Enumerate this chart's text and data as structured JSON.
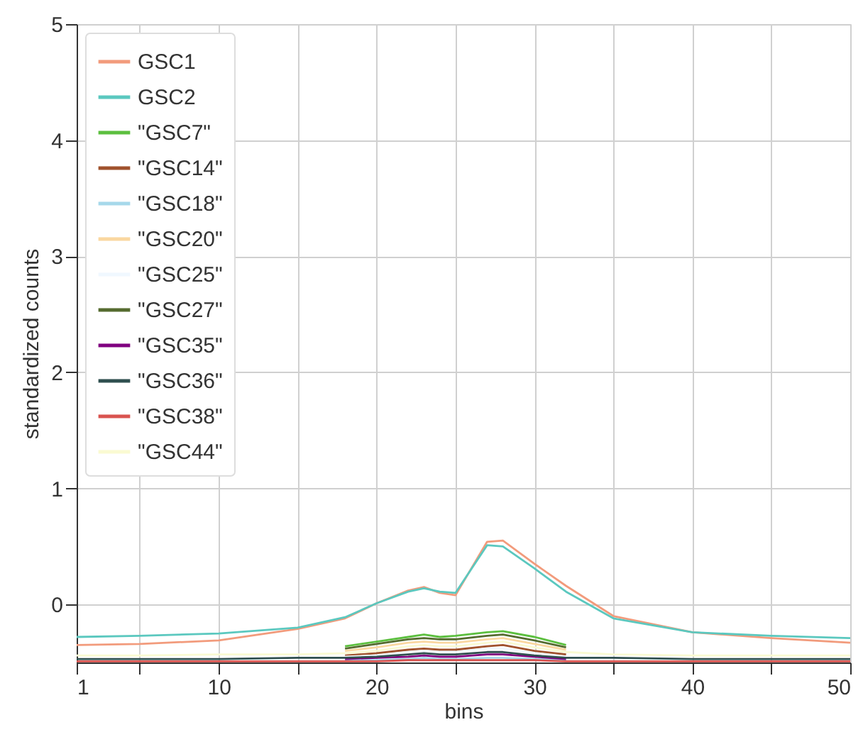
{
  "chart_data": {
    "type": "line",
    "xlabel": "bins",
    "ylabel": "standardized counts",
    "x": [
      1,
      5,
      10,
      15,
      18,
      20,
      22,
      23,
      24,
      25,
      27,
      28,
      30,
      32,
      35,
      40,
      45,
      50
    ],
    "xlim": [
      1,
      50
    ],
    "xticks": [
      1,
      {
        "value": 5,
        "label": null
      },
      10,
      {
        "value": 15,
        "label": null
      },
      20,
      {
        "value": 25,
        "label": null
      },
      30,
      {
        "value": 35,
        "label": null
      },
      40,
      {
        "value": 45,
        "label": null
      },
      50
    ],
    "ylim": [
      -0.5,
      5
    ],
    "yticks": [
      0,
      1,
      2,
      3,
      4,
      5
    ],
    "grid": true,
    "legend": "top left",
    "line_style": "solid",
    "marker": "none",
    "series": [
      {
        "name": "GSC1",
        "color": "#f29b7c",
        "values": [
          -0.35,
          -0.34,
          -0.31,
          -0.21,
          -0.12,
          0.01,
          0.12,
          0.15,
          0.1,
          0.08,
          0.54,
          0.55,
          0.35,
          0.16,
          -0.1,
          -0.24,
          -0.29,
          -0.33
        ]
      },
      {
        "name": "GSC2",
        "color": "#5bc8bf",
        "values": [
          -0.28,
          -0.27,
          -0.25,
          -0.2,
          -0.11,
          0.01,
          0.11,
          0.14,
          0.11,
          0.1,
          0.51,
          0.5,
          0.31,
          0.11,
          -0.12,
          -0.24,
          -0.27,
          -0.29
        ]
      },
      {
        "name": "\"GSC7\"",
        "color": "#5cbf3f",
        "values": [
          null,
          null,
          null,
          null,
          -0.36,
          -0.32,
          -0.28,
          -0.26,
          -0.28,
          -0.27,
          -0.24,
          -0.23,
          -0.28,
          -0.35,
          null,
          null,
          null,
          null
        ]
      },
      {
        "name": "\"GSC14\"",
        "color": "#a0522d",
        "values": [
          null,
          null,
          null,
          null,
          -0.44,
          -0.42,
          -0.39,
          -0.38,
          -0.39,
          -0.39,
          -0.36,
          -0.35,
          -0.4,
          -0.43,
          null,
          null,
          null,
          null
        ]
      },
      {
        "name": "\"GSC18\"",
        "color": "#a6d8ea",
        "values": [
          null,
          null,
          null,
          null,
          -0.48,
          -0.48,
          -0.47,
          -0.46,
          -0.47,
          -0.47,
          -0.46,
          -0.46,
          -0.47,
          -0.48,
          null,
          null,
          null,
          null
        ]
      },
      {
        "name": "\"GSC20\"",
        "color": "#fad7a0",
        "values": [
          null,
          null,
          null,
          null,
          -0.4,
          -0.37,
          -0.33,
          -0.32,
          -0.33,
          -0.33,
          -0.3,
          -0.29,
          -0.34,
          -0.39,
          null,
          null,
          null,
          null
        ]
      },
      {
        "name": "\"GSC25\"",
        "color": "#f0f8ff",
        "values": [
          null,
          null,
          null,
          null,
          -0.45,
          -0.44,
          -0.41,
          -0.4,
          -0.41,
          -0.41,
          -0.38,
          -0.38,
          -0.42,
          -0.45,
          null,
          null,
          null,
          null
        ]
      },
      {
        "name": "\"GSC27\"",
        "color": "#556b2f",
        "values": [
          null,
          null,
          null,
          null,
          -0.38,
          -0.34,
          -0.3,
          -0.29,
          -0.3,
          -0.3,
          -0.27,
          -0.26,
          -0.31,
          -0.37,
          null,
          null,
          null,
          null
        ]
      },
      {
        "name": "\"GSC35\"",
        "color": "#800080",
        "values": [
          null,
          null,
          null,
          null,
          -0.47,
          -0.46,
          -0.45,
          -0.44,
          -0.45,
          -0.45,
          -0.43,
          -0.43,
          -0.45,
          -0.47,
          null,
          null,
          null,
          null
        ]
      },
      {
        "name": "\"GSC36\"",
        "color": "#2f4f4f",
        "values": [
          -0.47,
          -0.47,
          -0.47,
          -0.46,
          -0.46,
          -0.45,
          -0.43,
          -0.42,
          -0.43,
          -0.43,
          -0.41,
          -0.41,
          -0.44,
          -0.46,
          -0.46,
          -0.47,
          -0.47,
          -0.47
        ]
      },
      {
        "name": "\"GSC38\"",
        "color": "#d9534f",
        "values": [
          -0.49,
          -0.49,
          -0.49,
          -0.49,
          -0.49,
          -0.49,
          -0.48,
          -0.48,
          -0.48,
          -0.48,
          -0.48,
          -0.48,
          -0.48,
          -0.49,
          -0.49,
          -0.49,
          -0.49,
          -0.49
        ]
      },
      {
        "name": "\"GSC44\"",
        "color": "#fafad2",
        "values": [
          -0.44,
          -0.44,
          -0.43,
          -0.43,
          -0.42,
          -0.4,
          -0.36,
          -0.35,
          -0.36,
          -0.36,
          -0.33,
          -0.32,
          -0.37,
          -0.41,
          -0.43,
          -0.44,
          -0.44,
          -0.44
        ]
      }
    ]
  }
}
